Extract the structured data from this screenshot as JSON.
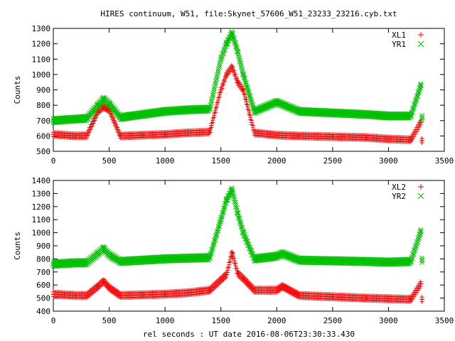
{
  "title": "HIRES continuum, W51, file:Skynet_57606_W51_23233_23216.cyb.txt",
  "xlabel": "rel seconds : UT date 2016-08-06T23:30:33.430",
  "colors": {
    "red": "#ff0000",
    "green": "#00c000"
  },
  "chart_data": [
    {
      "type": "scatter",
      "ylabel": "Counts",
      "xlim": [
        0,
        3500
      ],
      "ylim": [
        500,
        1300
      ],
      "x_ticks": [
        0,
        500,
        1000,
        1500,
        2000,
        2500,
        3000,
        3500
      ],
      "y_ticks": [
        500,
        600,
        700,
        800,
        900,
        1000,
        1100,
        1200,
        1300
      ],
      "grid": false,
      "legend_position": "top-right",
      "series": [
        {
          "name": "XL1",
          "marker": "plus",
          "color": "#ff0000",
          "x": [
            0,
            100,
            200,
            300,
            400,
            450,
            500,
            600,
            800,
            1000,
            1200,
            1400,
            1500,
            1550,
            1600,
            1650,
            1700,
            1800,
            2000,
            2200,
            2500,
            2800,
            3000,
            3200,
            3290,
            3300
          ],
          "y": [
            610,
            605,
            600,
            602,
            760,
            790,
            770,
            600,
            605,
            610,
            620,
            625,
            900,
            1000,
            1050,
            950,
            900,
            620,
            605,
            600,
            595,
            590,
            580,
            575,
            690,
            570
          ]
        },
        {
          "name": "YR1",
          "marker": "cross",
          "color": "#00c000",
          "x": [
            0,
            100,
            200,
            300,
            400,
            450,
            500,
            600,
            800,
            1000,
            1200,
            1400,
            1500,
            1550,
            1600,
            1650,
            1700,
            1800,
            2000,
            2200,
            2500,
            2800,
            3000,
            3200,
            3290,
            3300
          ],
          "y": [
            700,
            705,
            710,
            715,
            800,
            840,
            810,
            720,
            740,
            760,
            770,
            775,
            1100,
            1200,
            1270,
            1150,
            1000,
            760,
            820,
            760,
            750,
            740,
            730,
            730,
            930,
            720
          ]
        }
      ]
    },
    {
      "type": "scatter",
      "ylabel": "Counts",
      "xlim": [
        0,
        3500
      ],
      "ylim": [
        400,
        1400
      ],
      "x_ticks": [
        0,
        500,
        1000,
        1500,
        2000,
        2500,
        3000,
        3500
      ],
      "y_ticks": [
        400,
        500,
        600,
        700,
        800,
        900,
        1000,
        1100,
        1200,
        1300,
        1400
      ],
      "grid": false,
      "legend_position": "top-right",
      "series": [
        {
          "name": "XL2",
          "marker": "plus",
          "color": "#ff0000",
          "x": [
            0,
            100,
            200,
            300,
            400,
            450,
            500,
            600,
            800,
            1000,
            1200,
            1400,
            1500,
            1550,
            1600,
            1650,
            1700,
            1800,
            2000,
            2050,
            2200,
            2500,
            2800,
            3000,
            3200,
            3290,
            3300
          ],
          "y": [
            530,
            525,
            520,
            520,
            590,
            630,
            580,
            520,
            525,
            530,
            540,
            560,
            640,
            680,
            850,
            690,
            650,
            560,
            560,
            590,
            520,
            510,
            500,
            495,
            490,
            610,
            490
          ]
        },
        {
          "name": "YR2",
          "marker": "cross",
          "color": "#00c000",
          "x": [
            0,
            100,
            200,
            300,
            400,
            450,
            500,
            600,
            800,
            1000,
            1200,
            1400,
            1500,
            1550,
            1600,
            1650,
            1700,
            1800,
            2000,
            2050,
            2200,
            2500,
            2800,
            3000,
            3200,
            3290,
            3300
          ],
          "y": [
            760,
            765,
            770,
            770,
            840,
            880,
            830,
            780,
            790,
            800,
            805,
            810,
            1100,
            1250,
            1330,
            1150,
            1000,
            800,
            820,
            840,
            790,
            785,
            780,
            775,
            780,
            1010,
            790
          ]
        }
      ]
    }
  ]
}
